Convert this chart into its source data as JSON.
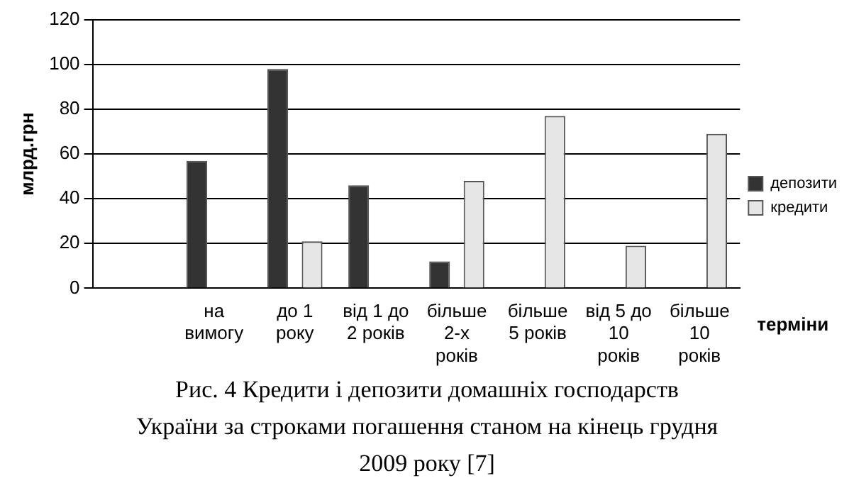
{
  "chart_data": {
    "type": "bar",
    "title": "Рис. 4 Кредити і депозити домашніх господарств України за строками погашення станом на кінець грудня 2009 року [7]",
    "xlabel": "терміни",
    "ylabel": "млрд.грн",
    "categories": [
      null,
      [
        "на",
        "вимогу"
      ],
      [
        "до 1",
        "року"
      ],
      [
        "від 1 до",
        "2 років"
      ],
      [
        "більше",
        "2-х",
        "років"
      ],
      [
        "більше",
        "5 років"
      ],
      [
        "від 5 до",
        "10",
        "років"
      ],
      [
        "більше",
        "10",
        "років"
      ]
    ],
    "series": [
      {
        "name": "депозити",
        "color": "#333333",
        "values": [
          null,
          57,
          98,
          46,
          12,
          null,
          null,
          null
        ]
      },
      {
        "name": "кредити",
        "color": "#e6e6e6",
        "values": [
          null,
          null,
          21,
          null,
          48,
          77,
          19,
          69
        ]
      }
    ],
    "ylim": [
      0,
      120
    ],
    "yticks": [
      0,
      20,
      40,
      60,
      80,
      100,
      120
    ],
    "grid": "y",
    "legend": "right"
  }
}
